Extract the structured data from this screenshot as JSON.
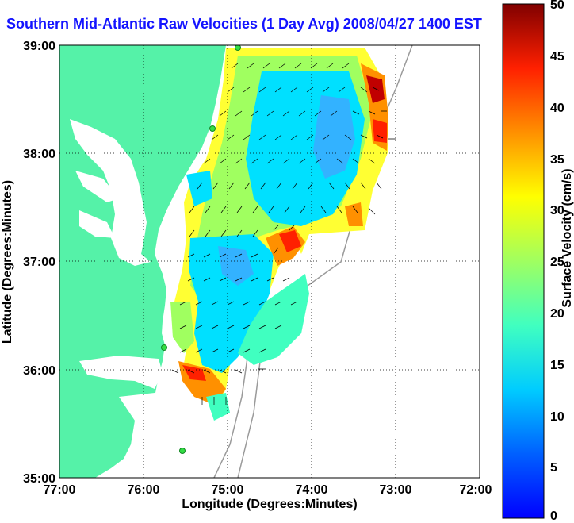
{
  "title": "Southern Mid-Atlantic Raw Velocities (1 Day Avg) 2008/04/27 1400 EST",
  "map": {
    "lon_range": [
      "77:00",
      "72:00"
    ],
    "lat_range": [
      "35:00",
      "39:00"
    ],
    "x_ticks": [
      "77:00",
      "76:00",
      "75:00",
      "74:00",
      "73:00",
      "72:00"
    ],
    "y_ticks": [
      "39:00",
      "38:00",
      "37:00",
      "36:00",
      "35:00"
    ],
    "xlabel": "Longitude (Degrees:Minutes)",
    "ylabel": "Latitude (Degrees:Minutes)",
    "land_color": "#55f2a8",
    "grid": "dotted"
  },
  "colorbar": {
    "label": "Surface Velocity (cm/s)",
    "ticks": [
      "50",
      "45",
      "40",
      "35",
      "30",
      "25",
      "20",
      "15",
      "10",
      "5",
      "0"
    ],
    "min": 0,
    "max": 50,
    "colormap": "jet"
  }
}
